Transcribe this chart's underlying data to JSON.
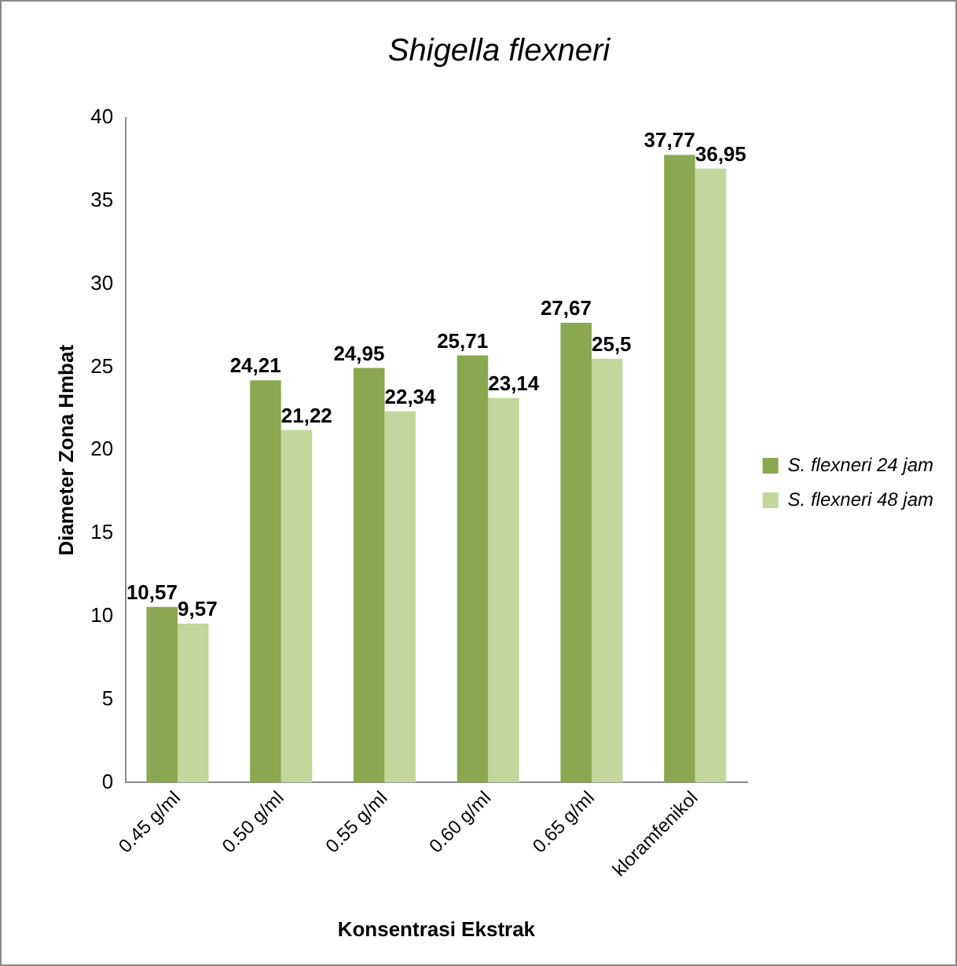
{
  "chart_data": {
    "type": "bar",
    "title": "Shigella flexneri",
    "xlabel": "Konsentrasi Ekstrak",
    "ylabel": "Diameter Zona Hmbat",
    "categories": [
      "0.45 g/ml",
      "0.50 g/ml",
      "0.55 g/ml",
      "0.60 g/ml",
      "0.65 g/ml",
      "kloramfenikol"
    ],
    "series": [
      {
        "name": "S. flexneri 24 jam",
        "color": "#8aa84f",
        "values": [
          10.57,
          24.21,
          24.95,
          25.71,
          27.67,
          37.77
        ],
        "value_labels": [
          "10,57",
          "24,21",
          "24,95",
          "25,71",
          "27,67",
          "37,77"
        ]
      },
      {
        "name": "S. flexneri 48 jam",
        "color": "#c3d69b",
        "values": [
          9.57,
          21.22,
          22.34,
          23.14,
          25.5,
          36.95
        ],
        "value_labels": [
          "9,57",
          "21,22",
          "22,34",
          "23,14",
          "25,5",
          "36,95"
        ]
      }
    ],
    "ylim": [
      0,
      40
    ],
    "yticks": [
      0,
      5,
      10,
      15,
      20,
      25,
      30,
      35,
      40
    ],
    "grid": false,
    "legend": "right"
  }
}
